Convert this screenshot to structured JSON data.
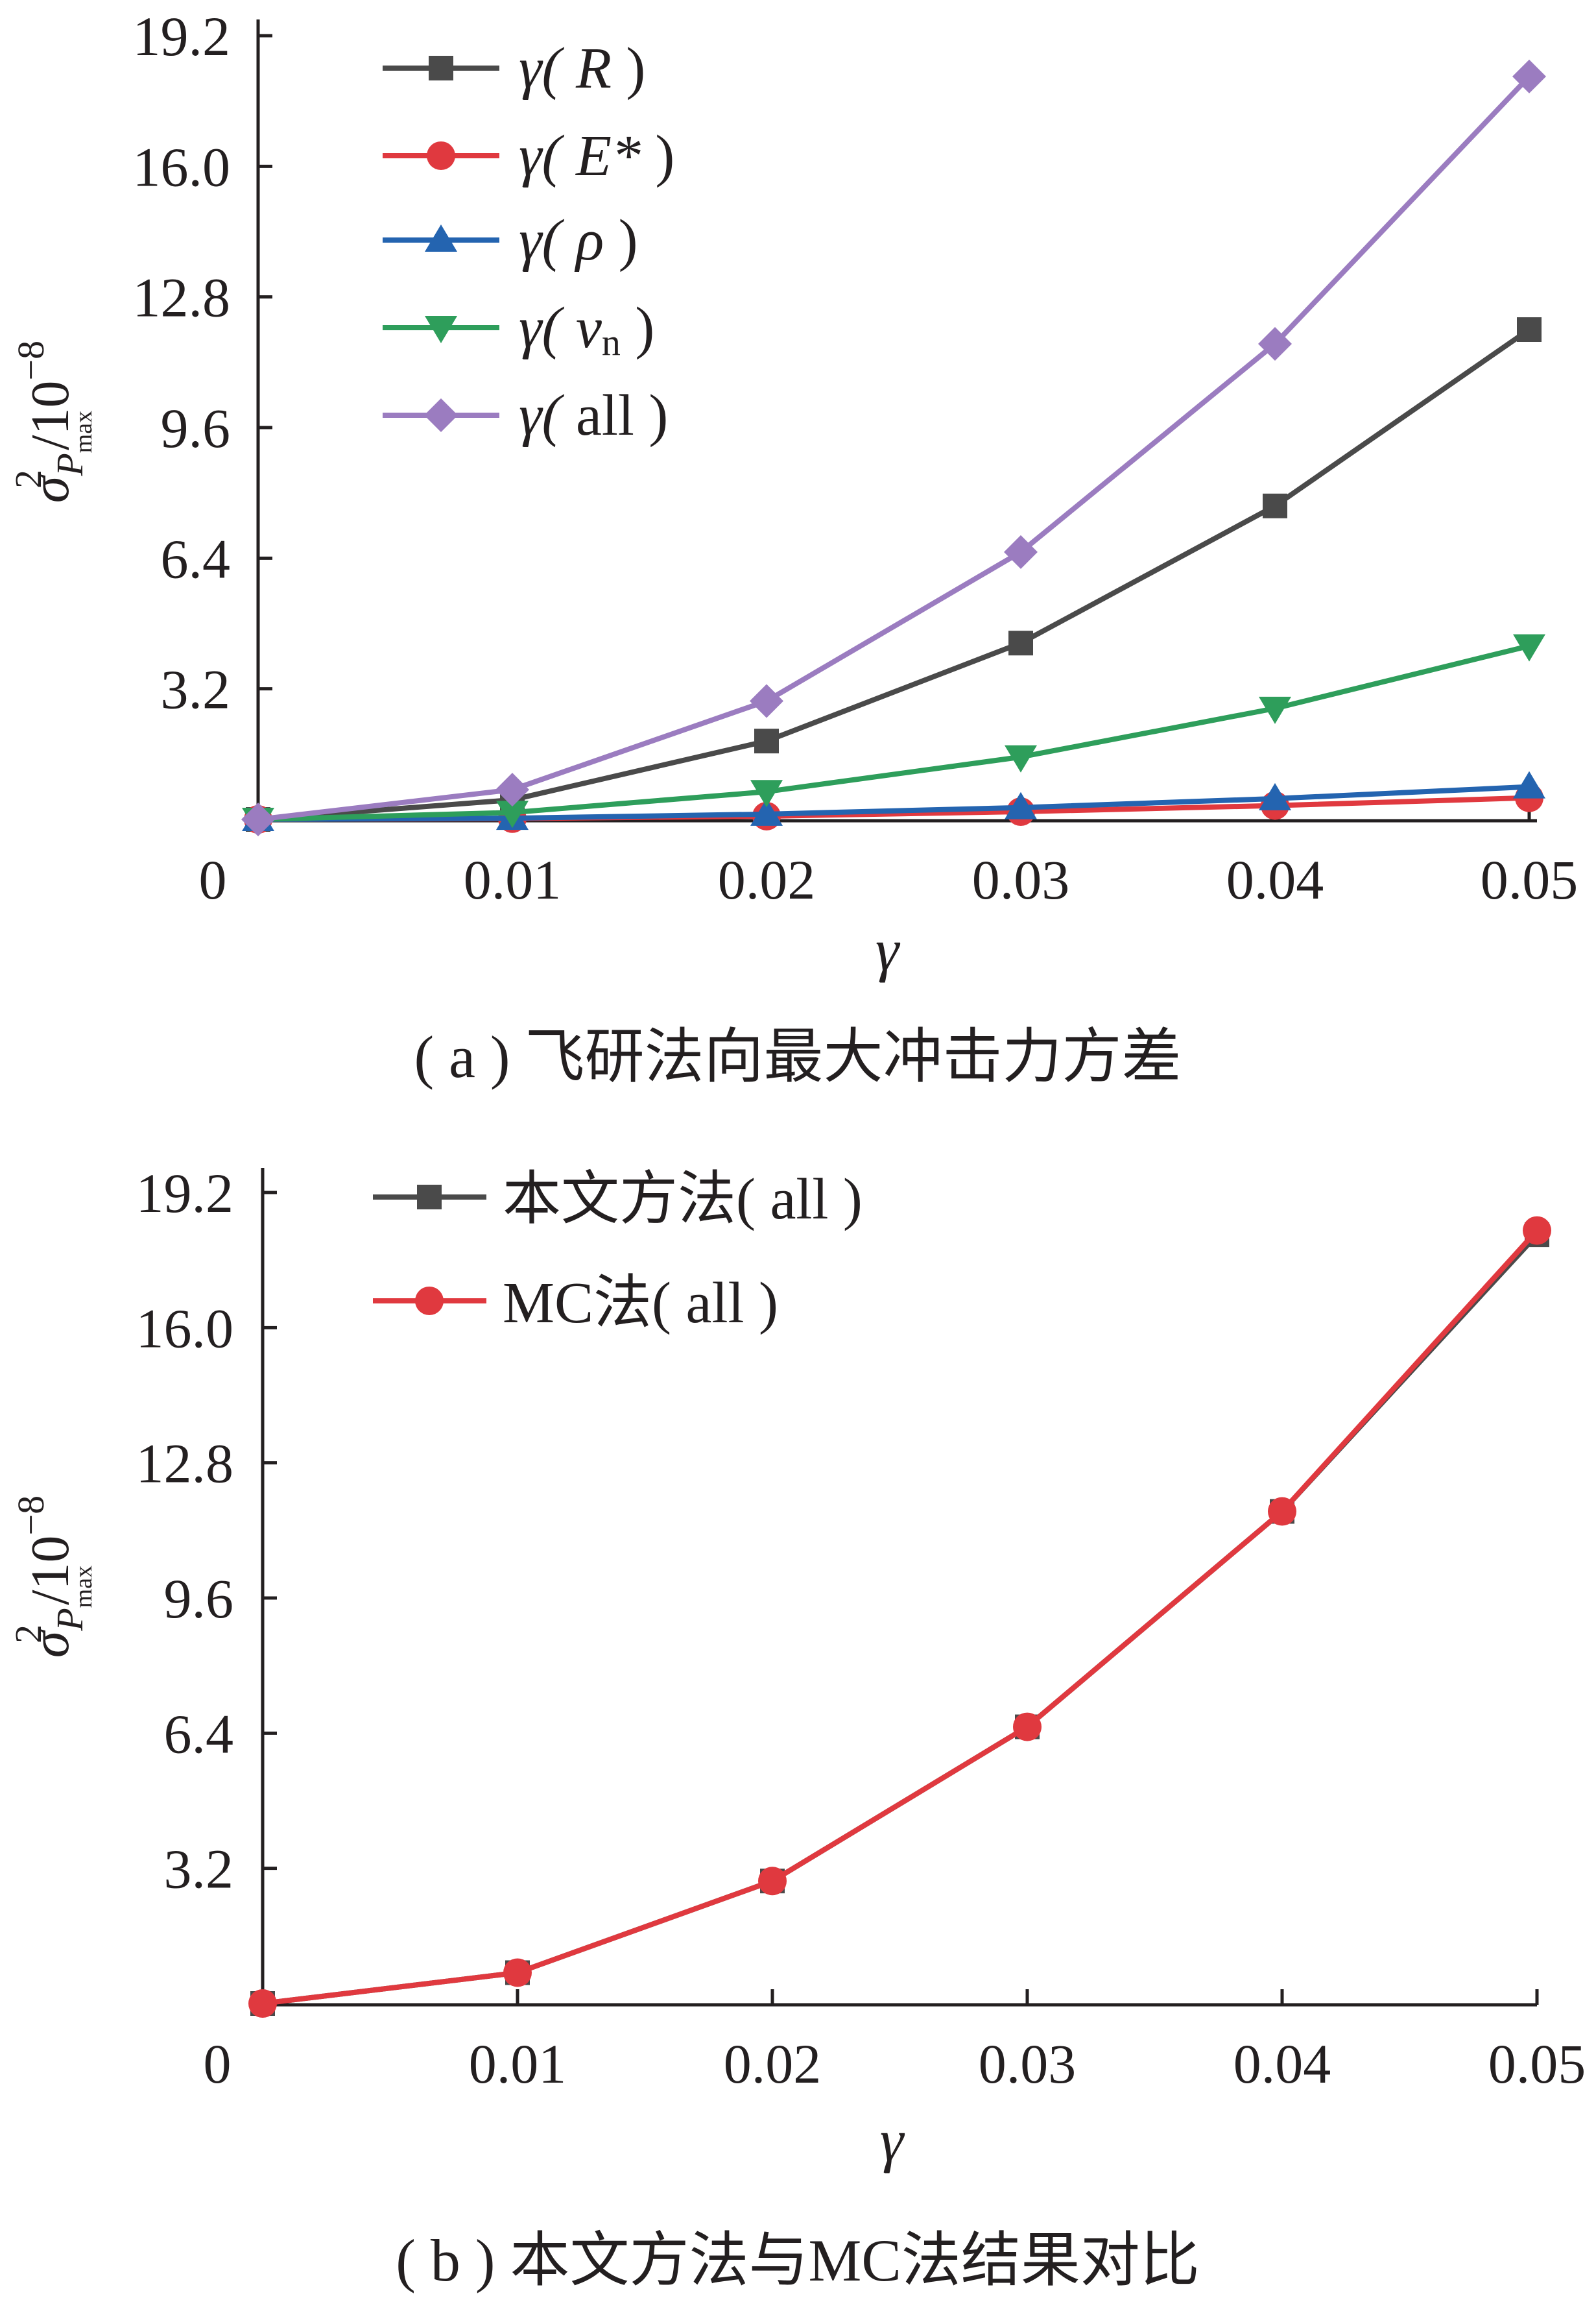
{
  "charts": [
    {
      "id": "a",
      "caption": "( a ) 飞研法向最大冲击力方差",
      "ylabel_sigma": "σ",
      "ylabel_sub": "P",
      "ylabel_subsub": "max",
      "ylabel_sup": "2",
      "ylabel_unit": "/10",
      "ylabel_unit_exp": "−8",
      "xlabel": "γ",
      "x_ticks": [
        "0",
        "0.01",
        "0.02",
        "0.03",
        "0.04",
        "0.05"
      ],
      "y_ticks": [
        "3.2",
        "6.4",
        "9.6",
        "12.8",
        "16.0",
        "19.2"
      ]
    },
    {
      "id": "b",
      "caption": "( b ) 本文方法与MC法结果对比",
      "ylabel_sigma": "σ",
      "ylabel_sub": "P",
      "ylabel_subsub": "max",
      "ylabel_sup": "2",
      "ylabel_unit": "/10",
      "ylabel_unit_exp": "−8",
      "xlabel": "γ",
      "x_ticks": [
        "0",
        "0.01",
        "0.02",
        "0.03",
        "0.04",
        "0.05"
      ],
      "y_ticks": [
        "3.2",
        "6.4",
        "9.6",
        "12.8",
        "16.0",
        "19.2"
      ]
    }
  ],
  "legend_a": [
    {
      "pre": "γ( ",
      "sym": "R",
      "sub": "",
      "post": " )"
    },
    {
      "pre": "γ( ",
      "sym": "E*",
      "sub": "",
      "post": " )"
    },
    {
      "pre": "γ( ",
      "sym": "ρ",
      "sub": "",
      "post": " )"
    },
    {
      "pre": "γ( ",
      "sym": "v",
      "sub": "n",
      "post": " )"
    },
    {
      "pre": "γ( ",
      "sym": "",
      "sub": "",
      "post": "all )"
    }
  ],
  "legend_b": [
    {
      "label": "本文方法( all )"
    },
    {
      "label": "MC法( all )"
    }
  ],
  "chart_data": [
    {
      "type": "line",
      "title": "( a ) 飞研法向最大冲击力方差",
      "xlabel": "γ",
      "ylabel": "σ²_Pmax /10⁻⁸",
      "xlim": [
        0,
        0.05
      ],
      "ylim": [
        0,
        19.2
      ],
      "x": [
        0,
        0.01,
        0.02,
        0.03,
        0.04,
        0.05
      ],
      "legend_position": "top-left",
      "series": [
        {
          "name": "γ(R)",
          "color": "#4a4a4a",
          "marker": "square",
          "values": [
            0,
            0.48,
            1.92,
            4.32,
            7.68,
            12.0
          ]
        },
        {
          "name": "γ(E*)",
          "color": "#e0393f",
          "marker": "circle",
          "values": [
            0,
            0.02,
            0.08,
            0.19,
            0.34,
            0.53
          ]
        },
        {
          "name": "γ(ρ)",
          "color": "#2464b0",
          "marker": "triangle-up",
          "values": [
            0,
            0.03,
            0.13,
            0.29,
            0.51,
            0.8
          ]
        },
        {
          "name": "γ(vn)",
          "color": "#2e9e5b",
          "marker": "triangle-down",
          "values": [
            0,
            0.17,
            0.68,
            1.53,
            2.72,
            4.25
          ]
        },
        {
          "name": "γ(all)",
          "color": "#9b7cc0",
          "marker": "diamond",
          "values": [
            0,
            0.73,
            2.9,
            6.55,
            11.65,
            18.2
          ]
        }
      ]
    },
    {
      "type": "line",
      "title": "( b ) 本文方法与MC法结果对比",
      "xlabel": "γ",
      "ylabel": "σ²_Pmax /10⁻⁸",
      "xlim": [
        0,
        0.05
      ],
      "ylim": [
        0,
        19.2
      ],
      "x": [
        0,
        0.01,
        0.02,
        0.03,
        0.04,
        0.05
      ],
      "legend_position": "top-left",
      "series": [
        {
          "name": "本文方法( all )",
          "color": "#4a4a4a",
          "marker": "square",
          "values": [
            0,
            0.73,
            2.9,
            6.55,
            11.65,
            18.2
          ]
        },
        {
          "name": "MC法( all )",
          "color": "#e0393f",
          "marker": "circle",
          "values": [
            0,
            0.73,
            2.9,
            6.55,
            11.65,
            18.3
          ]
        }
      ]
    }
  ]
}
